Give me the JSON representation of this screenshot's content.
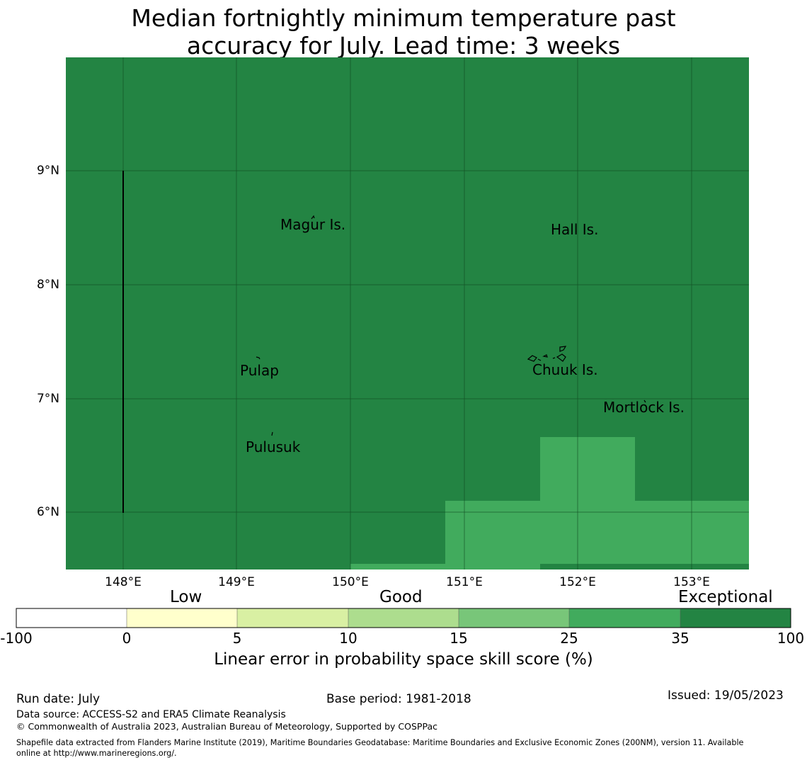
{
  "title": {
    "line1": "Median fortnightly minimum temperature past",
    "line2": "accuracy for July. Lead time: 3 weeks"
  },
  "map": {
    "lat_labels": [
      "9°N",
      "8°N",
      "7°N",
      "6°N"
    ],
    "lon_labels": [
      "148°E",
      "149°E",
      "150°E",
      "151°E",
      "152°E",
      "153°E"
    ],
    "extent": {
      "lon_min": 147.5,
      "lon_max": 153.5,
      "lat_min": 5.5,
      "lat_max": 10.0
    },
    "base_color": "#238443",
    "good_color": "#41ab5d",
    "places": [
      "Magur Is.",
      "Hall Is.",
      "Pulap",
      "Chuuk Is.",
      "Mortlock Is.",
      "Pulusuk"
    ]
  },
  "colorbar": {
    "categories": [
      "Low",
      "Good",
      "Exceptional"
    ],
    "ticks": [
      "-100",
      "0",
      "5",
      "10",
      "15",
      "25",
      "35",
      "100"
    ],
    "colors": [
      "#ffffff",
      "#ffffcc",
      "#d9f0a3",
      "#addd8e",
      "#78c679",
      "#41ab5d",
      "#238443"
    ],
    "label": "Linear error in probability space skill score (%)"
  },
  "footer": {
    "run_date": "Run date: July",
    "base_period": "Base period: 1981-2018",
    "issued": "Issued: 19/05/2023",
    "data_source": "Data source: ACCESS-S2 and ERA5 Climate Reanalysis",
    "copyright": "© Commonwealth of Australia 2023, Australian Bureau of Meteorology, Supported by COSPPac",
    "shapefile_line1": "Shapefile data extracted from Flanders Marine Institute (2019), Maritime Boundaries Geodatabase: Maritime Boundaries and Exclusive Economic Zones (200NM), version 11. Available",
    "shapefile_line2": "online at http://www.marineregions.org/."
  }
}
